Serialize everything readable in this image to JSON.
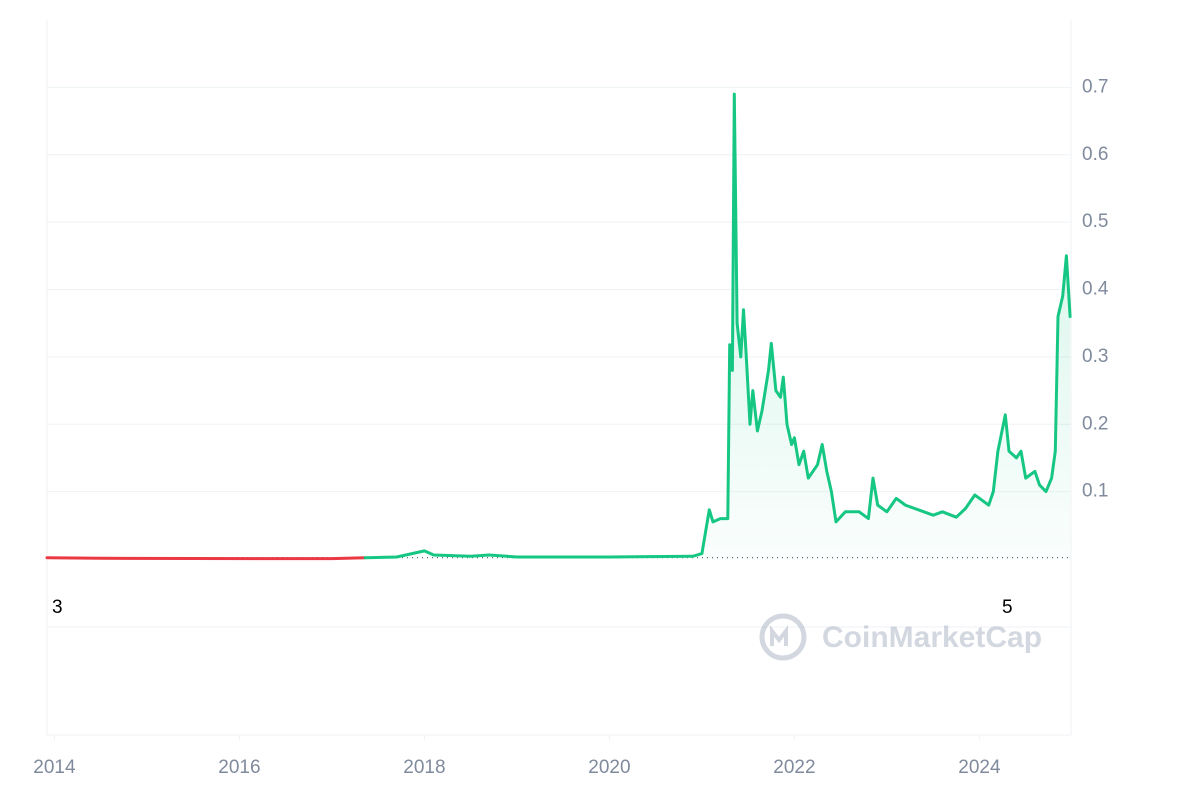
{
  "chart_data": {
    "type": "line",
    "watermark": "CoinMarketCap",
    "annotations": [
      "3",
      "5"
    ],
    "x": [
      2013.92,
      2014.5,
      2015.5,
      2016.5,
      2017.0,
      2017.36,
      2017.7,
      2018.0,
      2018.1,
      2018.5,
      2018.7,
      2019.0,
      2020.0,
      2020.9,
      2021.0,
      2021.08,
      2021.12,
      2021.2,
      2021.28,
      2021.3,
      2021.33,
      2021.35,
      2021.38,
      2021.42,
      2021.45,
      2021.48,
      2021.52,
      2021.55,
      2021.6,
      2021.65,
      2021.72,
      2021.75,
      2021.8,
      2021.85,
      2021.88,
      2021.92,
      2021.97,
      2022.0,
      2022.05,
      2022.1,
      2022.15,
      2022.25,
      2022.3,
      2022.35,
      2022.4,
      2022.45,
      2022.55,
      2022.7,
      2022.8,
      2022.85,
      2022.9,
      2023.0,
      2023.1,
      2023.2,
      2023.3,
      2023.4,
      2023.5,
      2023.6,
      2023.75,
      2023.85,
      2023.95,
      2024.05,
      2024.1,
      2024.15,
      2024.2,
      2024.28,
      2024.32,
      2024.4,
      2024.45,
      2024.5,
      2024.6,
      2024.65,
      2024.72,
      2024.78,
      2024.82,
      2024.85,
      2024.9,
      2024.94,
      2024.98
    ],
    "series": [
      {
        "color": "#ea3943",
        "values": [
          0.002,
          0.001,
          0.0008,
          0.0006,
          0.0006,
          0.002,
          null,
          null,
          null,
          null,
          null,
          null,
          null,
          null,
          null,
          null,
          null,
          null,
          null,
          null,
          null,
          null,
          null,
          null,
          null,
          null,
          null,
          null,
          null,
          null,
          null,
          null,
          null,
          null,
          null,
          null,
          null,
          null,
          null,
          null,
          null,
          null,
          null,
          null,
          null,
          null,
          null,
          null,
          null,
          null,
          null,
          null,
          null,
          null,
          null,
          null,
          null,
          null,
          null,
          null,
          null,
          null,
          null,
          null,
          null,
          null,
          null,
          null,
          null,
          null,
          null,
          null,
          null,
          null,
          null,
          null,
          null,
          null,
          null
        ]
      },
      {
        "color": "#16c784",
        "values": [
          null,
          null,
          null,
          null,
          null,
          0.002,
          0.003,
          0.012,
          0.006,
          0.004,
          0.006,
          0.003,
          0.003,
          0.004,
          0.008,
          0.073,
          0.055,
          0.06,
          0.06,
          0.318,
          0.28,
          0.69,
          0.35,
          0.3,
          0.37,
          0.3,
          0.2,
          0.25,
          0.19,
          0.22,
          0.28,
          0.32,
          0.25,
          0.24,
          0.27,
          0.2,
          0.17,
          0.18,
          0.14,
          0.16,
          0.12,
          0.14,
          0.17,
          0.13,
          0.1,
          0.055,
          0.07,
          0.07,
          0.06,
          0.12,
          0.08,
          0.07,
          0.09,
          0.08,
          0.075,
          0.07,
          0.065,
          0.07,
          0.062,
          0.075,
          0.095,
          0.085,
          0.08,
          0.1,
          0.16,
          0.214,
          0.16,
          0.15,
          0.16,
          0.12,
          0.13,
          0.11,
          0.1,
          0.12,
          0.16,
          0.36,
          0.39,
          0.45,
          0.36
        ]
      }
    ],
    "xlim": [
      2013.92,
      2024.99
    ],
    "xticks": [
      2014,
      2016,
      2018,
      2020,
      2022,
      2024
    ],
    "ylim": [
      0,
      0.8
    ],
    "yticks": [
      0.1,
      0.2,
      0.3,
      0.4,
      0.5,
      0.6,
      0.7
    ],
    "yticks_labels_note_free": null,
    "grid": true
  }
}
